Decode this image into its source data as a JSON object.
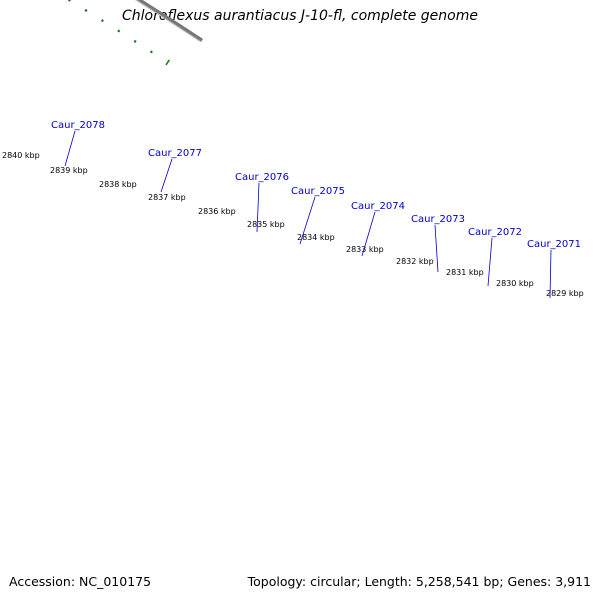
{
  "title": "Chloroflexus aurantiacus J-10-fl, complete genome",
  "footer": {
    "accession": "Accession: NC_010175",
    "summary": "Topology: circular; Length: 5,258,541 bp; Genes: 3,911"
  },
  "colors": {
    "backbone": "#777777",
    "cds": "#0a0af0",
    "ticks": "#1a7a1a",
    "label": "#0000cc"
  },
  "scale": {
    "labels": [
      "2840 kbp",
      "2839 kbp",
      "2838 kbp",
      "2837 kbp",
      "2836 kbp",
      "2835 kbp",
      "2834 kbp",
      "2833 kbp",
      "2832 kbp",
      "2831 kbp",
      "2830 kbp",
      "2829 kbp"
    ]
  },
  "genes": [
    {
      "name": "Caur_2078",
      "color": "#b8b8b8"
    },
    {
      "name": "Caur_2077",
      "color": "#b8b8b8"
    },
    {
      "name": "Caur_2076",
      "color": "#f08a00"
    },
    {
      "name": "Caur_2075",
      "color": "#b8b27a"
    },
    {
      "name": "Caur_2074",
      "color": "#b8b27a"
    },
    {
      "name": "Caur_2073",
      "color": "#b8b27a"
    },
    {
      "name": "Caur_2072",
      "color": "#f08a8a"
    },
    {
      "name": "Caur_2071",
      "color": "#b0b0b0"
    },
    {
      "name": "",
      "color": "#4a88c0"
    }
  ]
}
